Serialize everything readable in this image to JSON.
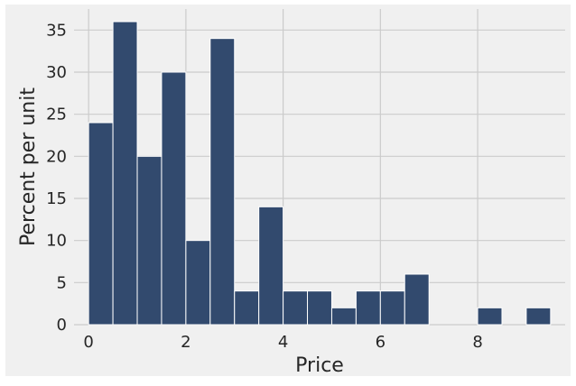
{
  "chart_data": {
    "type": "bar",
    "xlabel": "Price",
    "ylabel": "Percent per unit",
    "xlim": [
      -0.3,
      9.8
    ],
    "ylim": [
      0,
      37.5
    ],
    "xticks": [
      0,
      2,
      4,
      6,
      8
    ],
    "yticks": [
      0,
      5,
      10,
      15,
      20,
      25,
      30,
      35
    ],
    "grid": true,
    "bin_width": 0.5,
    "bins": [
      {
        "start": 0.0,
        "end": 0.5,
        "value": 24
      },
      {
        "start": 0.5,
        "end": 1.0,
        "value": 36
      },
      {
        "start": 1.0,
        "end": 1.5,
        "value": 20
      },
      {
        "start": 1.5,
        "end": 2.0,
        "value": 30
      },
      {
        "start": 2.0,
        "end": 2.5,
        "value": 10
      },
      {
        "start": 2.5,
        "end": 3.0,
        "value": 34
      },
      {
        "start": 3.0,
        "end": 3.5,
        "value": 4
      },
      {
        "start": 3.5,
        "end": 4.0,
        "value": 14
      },
      {
        "start": 4.0,
        "end": 4.5,
        "value": 4
      },
      {
        "start": 4.5,
        "end": 5.0,
        "value": 4
      },
      {
        "start": 5.0,
        "end": 5.5,
        "value": 2
      },
      {
        "start": 5.5,
        "end": 6.0,
        "value": 4
      },
      {
        "start": 6.0,
        "end": 6.5,
        "value": 4
      },
      {
        "start": 6.5,
        "end": 7.0,
        "value": 6
      },
      {
        "start": 7.0,
        "end": 7.5,
        "value": 0
      },
      {
        "start": 7.5,
        "end": 8.0,
        "value": 0
      },
      {
        "start": 8.0,
        "end": 8.5,
        "value": 2
      },
      {
        "start": 8.5,
        "end": 9.0,
        "value": 0
      },
      {
        "start": 9.0,
        "end": 9.5,
        "value": 2
      }
    ],
    "colors": {
      "bar": "#324a6e",
      "bar_edge": "#ffffff",
      "plot_background": "#f0f0f0",
      "figure_background": "#f0f0f0",
      "grid": "#cbcbcb"
    }
  }
}
